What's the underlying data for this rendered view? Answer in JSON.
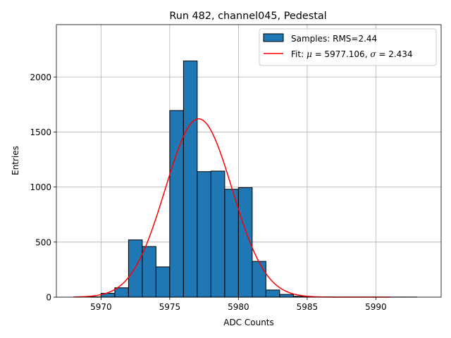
{
  "chart_data": {
    "type": "bar",
    "title": "Run 482, channel045, Pedestal",
    "xlabel": "ADC Counts",
    "ylabel": "Entries",
    "xlim": [
      5966.75,
      5994.75
    ],
    "ylim": [
      0,
      2475
    ],
    "x_ticks": [
      5970,
      5975,
      5980,
      5985,
      5990
    ],
    "y_ticks": [
      0,
      500,
      1000,
      1500,
      2000
    ],
    "x_tick_labels": [
      "5970",
      "5975",
      "5980",
      "5985",
      "5990"
    ],
    "y_tick_labels": [
      "0",
      "500",
      "1000",
      "1500",
      "2000"
    ],
    "grid": true,
    "bin_width": 1,
    "bin_edges": [
      5969,
      5970,
      5971,
      5972,
      5973,
      5974,
      5975,
      5976,
      5977,
      5978,
      5979,
      5980,
      5981,
      5982,
      5983,
      5984,
      5985,
      5986,
      5987,
      5988,
      5989,
      5990,
      5991,
      5992,
      5993
    ],
    "values": [
      3,
      35,
      85,
      520,
      460,
      275,
      1695,
      2145,
      1140,
      1145,
      980,
      995,
      325,
      65,
      25,
      8,
      3,
      2,
      1,
      1,
      1,
      1,
      1,
      1
    ],
    "bar_color": "#1f77b4",
    "bar_edge_color": "#000000",
    "fit": {
      "type": "gaussian",
      "mu": 5977.106,
      "sigma": 2.434,
      "amplitude": 1620,
      "x_range": [
        5968,
        5991
      ],
      "color": "#ff0000"
    },
    "legend": {
      "position": "top-right",
      "entries": [
        {
          "label": "Samples: RMS=2.44",
          "kind": "patch",
          "color": "#1f77b4"
        },
        {
          "label_prefix": "Fit: ",
          "mu_symbol": "μ",
          "mu_text": " = 5977.106, ",
          "sigma_symbol": "σ",
          "sigma_text": " = 2.434",
          "kind": "line",
          "color": "#ff0000"
        }
      ]
    }
  }
}
